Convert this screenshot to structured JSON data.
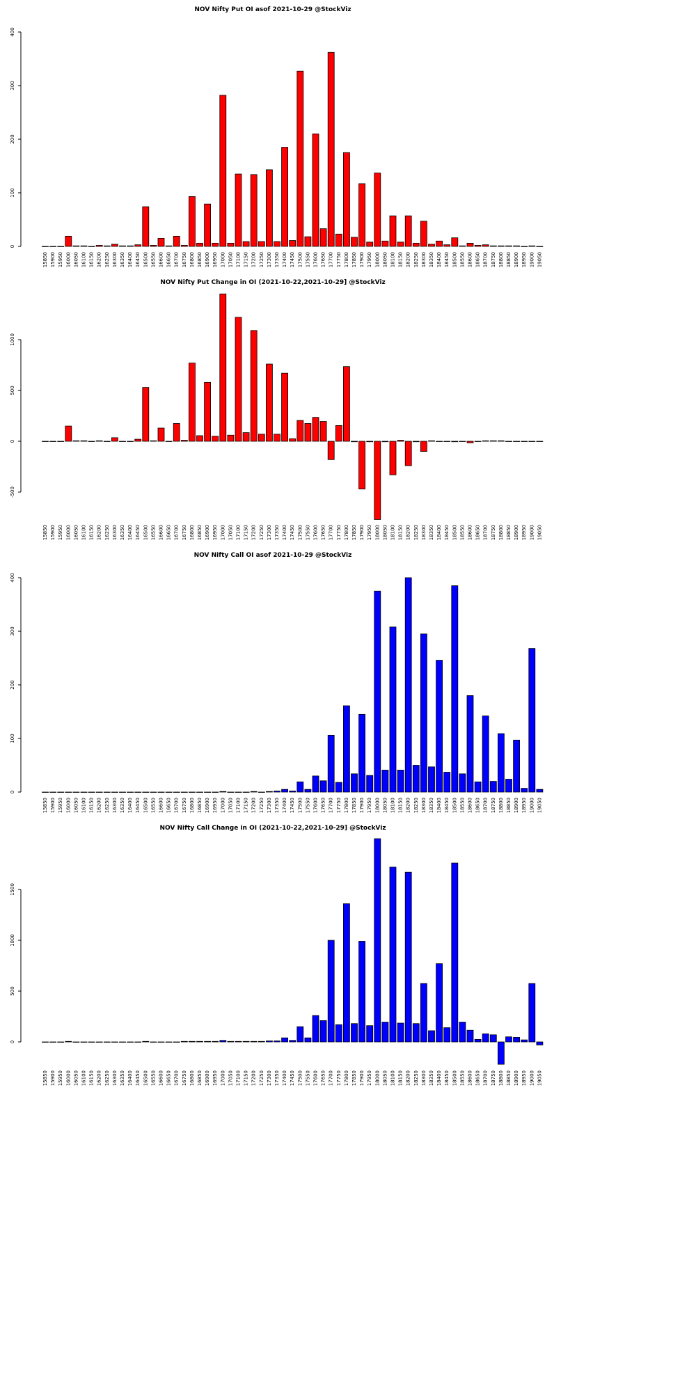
{
  "chart_data": [
    {
      "type": "bar",
      "title": "NOV Nifty Put OI asof 2021-10-29 @StockViz",
      "color": "#ff0000",
      "categories": [
        "15850",
        "15900",
        "15950",
        "16000",
        "16050",
        "16100",
        "16150",
        "16200",
        "16250",
        "16300",
        "16350",
        "16400",
        "16450",
        "16500",
        "16550",
        "16600",
        "16650",
        "16700",
        "16750",
        "16800",
        "16850",
        "16900",
        "16950",
        "17000",
        "17050",
        "17100",
        "17150",
        "17200",
        "17250",
        "17300",
        "17350",
        "17400",
        "17450",
        "17500",
        "17550",
        "17600",
        "17650",
        "17700",
        "17750",
        "17800",
        "17850",
        "17900",
        "17950",
        "18000",
        "18050",
        "18100",
        "18150",
        "18200",
        "18250",
        "18300",
        "18350",
        "18400",
        "18450",
        "18500",
        "18550",
        "18600",
        "18650",
        "18700",
        "18750",
        "18800",
        "18850",
        "18900",
        "18950",
        "19000",
        "19050"
      ],
      "values": [
        0,
        0,
        0,
        19,
        1,
        1,
        0,
        2,
        1,
        4,
        1,
        1,
        3,
        74,
        2,
        15,
        1,
        19,
        2,
        93,
        6,
        79,
        6,
        282,
        6,
        135,
        9,
        134,
        9,
        143,
        9,
        185,
        11,
        327,
        18,
        210,
        33,
        362,
        23,
        175,
        17,
        117,
        8,
        137,
        10,
        57,
        8,
        57,
        6,
        47,
        4,
        10,
        3,
        16,
        1,
        6,
        2,
        3,
        1,
        1,
        1,
        1,
        0,
        1,
        0
      ],
      "ylim": [
        0,
        400
      ],
      "yticks": [
        0,
        100,
        200,
        300,
        400
      ]
    },
    {
      "type": "bar",
      "title": "NOV Nifty Put Change in OI (2021-10-22,2021-10-29] @StockViz",
      "color": "#ff0000",
      "categories": [
        "15850",
        "15900",
        "15950",
        "16000",
        "16050",
        "16100",
        "16150",
        "16200",
        "16250",
        "16300",
        "16350",
        "16400",
        "16450",
        "16500",
        "16550",
        "16600",
        "16650",
        "16700",
        "16750",
        "16800",
        "16850",
        "16900",
        "16950",
        "17000",
        "17050",
        "17100",
        "17150",
        "17200",
        "17250",
        "17300",
        "17350",
        "17400",
        "17450",
        "17500",
        "17550",
        "17600",
        "17650",
        "17700",
        "17750",
        "17800",
        "17850",
        "17900",
        "17950",
        "18000",
        "18050",
        "18100",
        "18150",
        "18200",
        "18250",
        "18300",
        "18350",
        "18400",
        "18450",
        "18500",
        "18550",
        "18600",
        "18650",
        "18700",
        "18750",
        "18800",
        "18850",
        "18900",
        "18950",
        "19000",
        "19050"
      ],
      "values": [
        0,
        0,
        0,
        150,
        5,
        5,
        0,
        5,
        0,
        35,
        0,
        0,
        20,
        530,
        5,
        130,
        0,
        175,
        10,
        770,
        55,
        580,
        50,
        1450,
        60,
        1220,
        85,
        1090,
        70,
        760,
        70,
        670,
        25,
        205,
        175,
        235,
        195,
        -180,
        155,
        735,
        -5,
        -470,
        -5,
        -770,
        -5,
        -330,
        10,
        -240,
        -5,
        -100,
        5,
        0,
        0,
        -5,
        0,
        -15,
        0,
        5,
        5,
        5,
        0,
        0,
        0,
        0,
        0
      ],
      "ylim": [
        -767,
        1452
      ],
      "yticks": [
        -500,
        0,
        500,
        1000
      ]
    },
    {
      "type": "bar",
      "title": "NOV Nifty Call OI asof 2021-10-29 @StockViz",
      "color": "#0000ff",
      "categories": [
        "15850",
        "15900",
        "15950",
        "16000",
        "16050",
        "16100",
        "16150",
        "16200",
        "16250",
        "16300",
        "16350",
        "16400",
        "16450",
        "16500",
        "16550",
        "16600",
        "16650",
        "16700",
        "16750",
        "16800",
        "16850",
        "16900",
        "16950",
        "17000",
        "17050",
        "17100",
        "17150",
        "17200",
        "17250",
        "17300",
        "17350",
        "17400",
        "17450",
        "17500",
        "17550",
        "17600",
        "17650",
        "17700",
        "17750",
        "17800",
        "17850",
        "17900",
        "17950",
        "18000",
        "18050",
        "18100",
        "18150",
        "18200",
        "18250",
        "18300",
        "18350",
        "18400",
        "18450",
        "18500",
        "18550",
        "18600",
        "18650",
        "18700",
        "18750",
        "18800",
        "18850",
        "18900",
        "18950",
        "19000",
        "19050"
      ],
      "values": [
        0,
        0,
        0,
        0,
        0,
        0,
        0,
        0,
        0,
        0,
        0,
        0,
        0,
        0,
        0,
        0,
        0,
        0,
        0,
        0,
        0,
        0,
        0,
        1,
        0,
        0,
        0,
        1,
        0,
        1,
        2,
        5,
        2,
        19,
        5,
        30,
        21,
        106,
        18,
        161,
        34,
        145,
        31,
        375,
        41,
        308,
        41,
        400,
        50,
        295,
        47,
        246,
        37,
        385,
        34,
        180,
        19,
        142,
        20,
        109,
        24,
        97,
        7,
        268,
        5
      ],
      "ylim": [
        0,
        400
      ],
      "yticks": [
        0,
        100,
        200,
        300,
        400
      ]
    },
    {
      "type": "bar",
      "title": "NOV Nifty Call Change in OI (2021-10-22,2021-10-29] @StockViz",
      "color": "#0000ff",
      "categories": [
        "15850",
        "15900",
        "15950",
        "16000",
        "16050",
        "16100",
        "16150",
        "16200",
        "16250",
        "16300",
        "16350",
        "16400",
        "16450",
        "16500",
        "16550",
        "16600",
        "16650",
        "16700",
        "16750",
        "16800",
        "16850",
        "16900",
        "16950",
        "17000",
        "17050",
        "17100",
        "17150",
        "17200",
        "17250",
        "17300",
        "17350",
        "17400",
        "17450",
        "17500",
        "17550",
        "17600",
        "17650",
        "17700",
        "17750",
        "17800",
        "17850",
        "17900",
        "17950",
        "18000",
        "18050",
        "18100",
        "18150",
        "18200",
        "18250",
        "18300",
        "18350",
        "18400",
        "18450",
        "18500",
        "18550",
        "18600",
        "18650",
        "18700",
        "18750",
        "18800",
        "18850",
        "18900",
        "18950",
        "19000",
        "19050"
      ],
      "values": [
        0,
        0,
        0,
        5,
        0,
        0,
        0,
        0,
        0,
        0,
        0,
        0,
        0,
        5,
        0,
        0,
        0,
        0,
        5,
        5,
        5,
        5,
        5,
        15,
        5,
        5,
        5,
        5,
        5,
        10,
        10,
        40,
        15,
        150,
        40,
        260,
        210,
        1000,
        170,
        1360,
        180,
        990,
        160,
        2000,
        195,
        1720,
        185,
        1670,
        180,
        575,
        110,
        770,
        140,
        1760,
        195,
        115,
        25,
        80,
        70,
        -220,
        50,
        45,
        20,
        575,
        -30
      ],
      "ylim": [
        -226,
        2000
      ],
      "yticks": [
        0,
        500,
        1000,
        1500
      ]
    }
  ]
}
